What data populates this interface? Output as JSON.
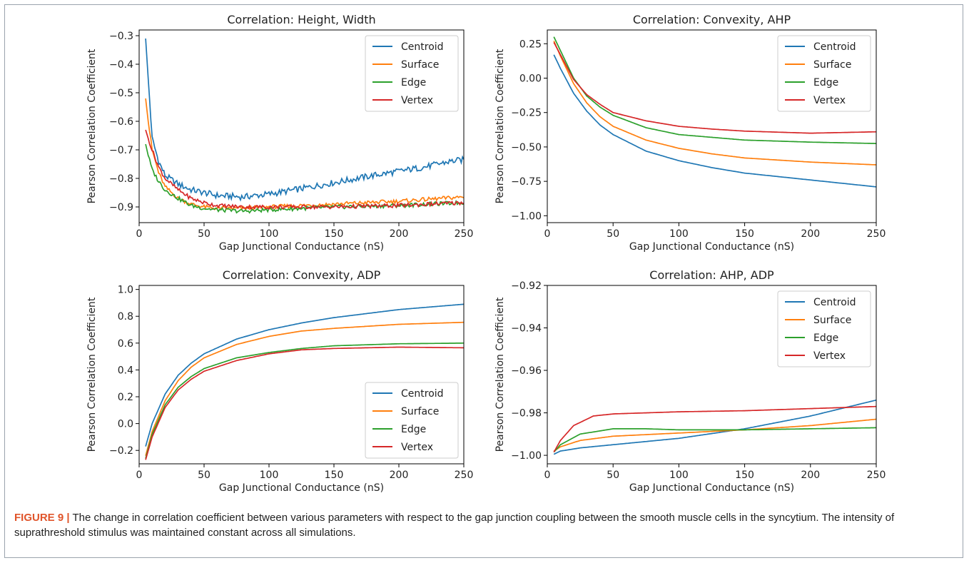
{
  "figure_label": "FIGURE 9 |",
  "caption": "The change in correlation coefficient between various parameters with respect to the gap junction coupling between the smooth muscle cells in the syncytium. The intensity of suprathreshold stimulus was maintained constant across all simulations.",
  "colors": {
    "Centroid": "#1f77b4",
    "Surface": "#ff7f0e",
    "Edge": "#2ca02c",
    "Vertex": "#d62728"
  },
  "chart_data": [
    {
      "type": "line",
      "title": "Correlation: Height, Width",
      "xlabel": "Gap Junctional Conductance (nS)",
      "ylabel": "Pearson Correlation Coefficient",
      "xlim": [
        0,
        250
      ],
      "ylim": [
        -0.955,
        -0.28
      ],
      "xticks": [
        0,
        50,
        100,
        150,
        200,
        250
      ],
      "yticks": [
        -0.3,
        -0.4,
        -0.5,
        -0.6,
        -0.7,
        -0.8,
        -0.9
      ],
      "ytick_labels": [
        "−0.3",
        "−0.4",
        "−0.5",
        "−0.6",
        "−0.7",
        "−0.8",
        "−0.9"
      ],
      "legend": "top-right",
      "noisy": true,
      "series": [
        {
          "name": "Centroid",
          "x": [
            5,
            7,
            10,
            15,
            20,
            30,
            40,
            50,
            60,
            80,
            100,
            120,
            150,
            180,
            200,
            220,
            240,
            250
          ],
          "y": [
            -0.31,
            -0.45,
            -0.66,
            -0.74,
            -0.79,
            -0.82,
            -0.84,
            -0.85,
            -0.86,
            -0.865,
            -0.855,
            -0.84,
            -0.815,
            -0.79,
            -0.775,
            -0.76,
            -0.74,
            -0.735
          ]
        },
        {
          "name": "Surface",
          "x": [
            5,
            7,
            10,
            15,
            20,
            30,
            40,
            50,
            60,
            80,
            100,
            150,
            200,
            250
          ],
          "y": [
            -0.52,
            -0.6,
            -0.7,
            -0.78,
            -0.83,
            -0.87,
            -0.89,
            -0.9,
            -0.905,
            -0.905,
            -0.9,
            -0.89,
            -0.88,
            -0.865
          ]
        },
        {
          "name": "Edge",
          "x": [
            5,
            7,
            10,
            15,
            20,
            30,
            40,
            50,
            60,
            80,
            100,
            150,
            200,
            250
          ],
          "y": [
            -0.68,
            -0.72,
            -0.77,
            -0.81,
            -0.84,
            -0.87,
            -0.895,
            -0.905,
            -0.91,
            -0.915,
            -0.91,
            -0.9,
            -0.895,
            -0.885
          ]
        },
        {
          "name": "Vertex",
          "x": [
            5,
            7,
            10,
            15,
            20,
            30,
            40,
            50,
            60,
            80,
            100,
            150,
            200,
            250
          ],
          "y": [
            -0.63,
            -0.66,
            -0.7,
            -0.76,
            -0.8,
            -0.84,
            -0.87,
            -0.885,
            -0.895,
            -0.9,
            -0.9,
            -0.9,
            -0.895,
            -0.885
          ]
        }
      ]
    },
    {
      "type": "line",
      "title": "Correlation: Convexity, AHP",
      "xlabel": "Gap Junctional Conductance (nS)",
      "ylabel": "Pearson Correlation Coefficient",
      "xlim": [
        0,
        250
      ],
      "ylim": [
        -1.05,
        0.35
      ],
      "xticks": [
        0,
        50,
        100,
        150,
        200,
        250
      ],
      "yticks": [
        0.25,
        0.0,
        -0.25,
        -0.5,
        -0.75,
        -1.0
      ],
      "ytick_labels": [
        "0.25",
        "0.00",
        "−0.25",
        "−0.50",
        "−0.75",
        "−1.00"
      ],
      "legend": "top-right",
      "noisy": false,
      "series": [
        {
          "name": "Centroid",
          "x": [
            5,
            10,
            20,
            30,
            40,
            50,
            75,
            100,
            125,
            150,
            200,
            250
          ],
          "y": [
            0.17,
            0.07,
            -0.11,
            -0.24,
            -0.34,
            -0.41,
            -0.53,
            -0.6,
            -0.65,
            -0.69,
            -0.74,
            -0.79
          ]
        },
        {
          "name": "Surface",
          "x": [
            5,
            10,
            20,
            30,
            40,
            50,
            75,
            100,
            125,
            150,
            200,
            250
          ],
          "y": [
            0.27,
            0.16,
            -0.04,
            -0.18,
            -0.28,
            -0.35,
            -0.45,
            -0.51,
            -0.55,
            -0.58,
            -0.61,
            -0.63
          ]
        },
        {
          "name": "Edge",
          "x": [
            5,
            10,
            20,
            30,
            40,
            50,
            75,
            100,
            125,
            150,
            200,
            250
          ],
          "y": [
            0.3,
            0.2,
            0.0,
            -0.13,
            -0.21,
            -0.27,
            -0.36,
            -0.41,
            -0.43,
            -0.45,
            -0.465,
            -0.475
          ]
        },
        {
          "name": "Vertex",
          "x": [
            5,
            10,
            20,
            30,
            40,
            50,
            75,
            100,
            125,
            150,
            200,
            250
          ],
          "y": [
            0.26,
            0.17,
            -0.01,
            -0.12,
            -0.19,
            -0.25,
            -0.31,
            -0.35,
            -0.37,
            -0.385,
            -0.4,
            -0.39
          ]
        }
      ]
    },
    {
      "type": "line",
      "title": "Correlation: Convexity, ADP",
      "xlabel": "Gap Junctional Conductance (nS)",
      "ylabel": "Pearson Correlation Coefficient",
      "xlim": [
        0,
        250
      ],
      "ylim": [
        -0.3,
        1.03
      ],
      "xticks": [
        0,
        50,
        100,
        150,
        200,
        250
      ],
      "yticks": [
        1.0,
        0.8,
        0.6,
        0.4,
        0.2,
        0.0,
        -0.2
      ],
      "ytick_labels": [
        "1.0",
        "0.8",
        "0.6",
        "0.4",
        "0.2",
        "0.0",
        "−0.2"
      ],
      "legend": "bottom-right",
      "noisy": false,
      "series": [
        {
          "name": "Centroid",
          "x": [
            5,
            10,
            20,
            30,
            40,
            50,
            75,
            100,
            125,
            150,
            200,
            250
          ],
          "y": [
            -0.17,
            0.0,
            0.22,
            0.36,
            0.45,
            0.52,
            0.63,
            0.7,
            0.75,
            0.79,
            0.85,
            0.89
          ]
        },
        {
          "name": "Surface",
          "x": [
            5,
            10,
            20,
            30,
            40,
            50,
            75,
            100,
            125,
            150,
            200,
            250
          ],
          "y": [
            -0.24,
            -0.06,
            0.17,
            0.32,
            0.42,
            0.49,
            0.59,
            0.65,
            0.69,
            0.71,
            0.74,
            0.755
          ]
        },
        {
          "name": "Edge",
          "x": [
            5,
            10,
            20,
            30,
            40,
            50,
            75,
            100,
            125,
            150,
            200,
            250
          ],
          "y": [
            -0.26,
            -0.08,
            0.14,
            0.27,
            0.35,
            0.41,
            0.49,
            0.53,
            0.56,
            0.58,
            0.595,
            0.6
          ]
        },
        {
          "name": "Vertex",
          "x": [
            5,
            10,
            20,
            30,
            40,
            50,
            75,
            100,
            125,
            150,
            200,
            250
          ],
          "y": [
            -0.27,
            -0.1,
            0.12,
            0.25,
            0.33,
            0.39,
            0.47,
            0.52,
            0.55,
            0.56,
            0.57,
            0.565
          ]
        }
      ]
    },
    {
      "type": "line",
      "title": "Correlation: AHP, ADP",
      "xlabel": "Gap Junctional Conductance (nS)",
      "ylabel": "Pearson Correlation Coefficient",
      "xlim": [
        0,
        250
      ],
      "ylim": [
        -1.004,
        -0.92
      ],
      "xticks": [
        0,
        50,
        100,
        150,
        200,
        250
      ],
      "yticks": [
        -0.92,
        -0.94,
        -0.96,
        -0.98,
        -1.0
      ],
      "ytick_labels": [
        "−0.92",
        "−0.94",
        "−0.96",
        "−0.98",
        "−1.00"
      ],
      "legend": "top-right",
      "noisy": false,
      "series": [
        {
          "name": "Centroid",
          "x": [
            5,
            10,
            25,
            50,
            100,
            150,
            200,
            250
          ],
          "y": [
            -0.9995,
            -0.998,
            -0.9965,
            -0.995,
            -0.992,
            -0.9875,
            -0.9815,
            -0.974
          ]
        },
        {
          "name": "Surface",
          "x": [
            5,
            10,
            25,
            50,
            100,
            150,
            200,
            250
          ],
          "y": [
            -0.998,
            -0.996,
            -0.993,
            -0.991,
            -0.9895,
            -0.988,
            -0.986,
            -0.983
          ]
        },
        {
          "name": "Edge",
          "x": [
            5,
            10,
            25,
            50,
            75,
            100,
            150,
            200,
            250
          ],
          "y": [
            -0.9985,
            -0.995,
            -0.99,
            -0.9875,
            -0.9875,
            -0.988,
            -0.988,
            -0.9875,
            -0.987
          ]
        },
        {
          "name": "Vertex",
          "x": [
            5,
            10,
            20,
            35,
            50,
            75,
            100,
            150,
            200,
            250
          ],
          "y": [
            -0.9985,
            -0.993,
            -0.986,
            -0.9815,
            -0.9805,
            -0.98,
            -0.9795,
            -0.979,
            -0.978,
            -0.977
          ]
        }
      ]
    }
  ]
}
